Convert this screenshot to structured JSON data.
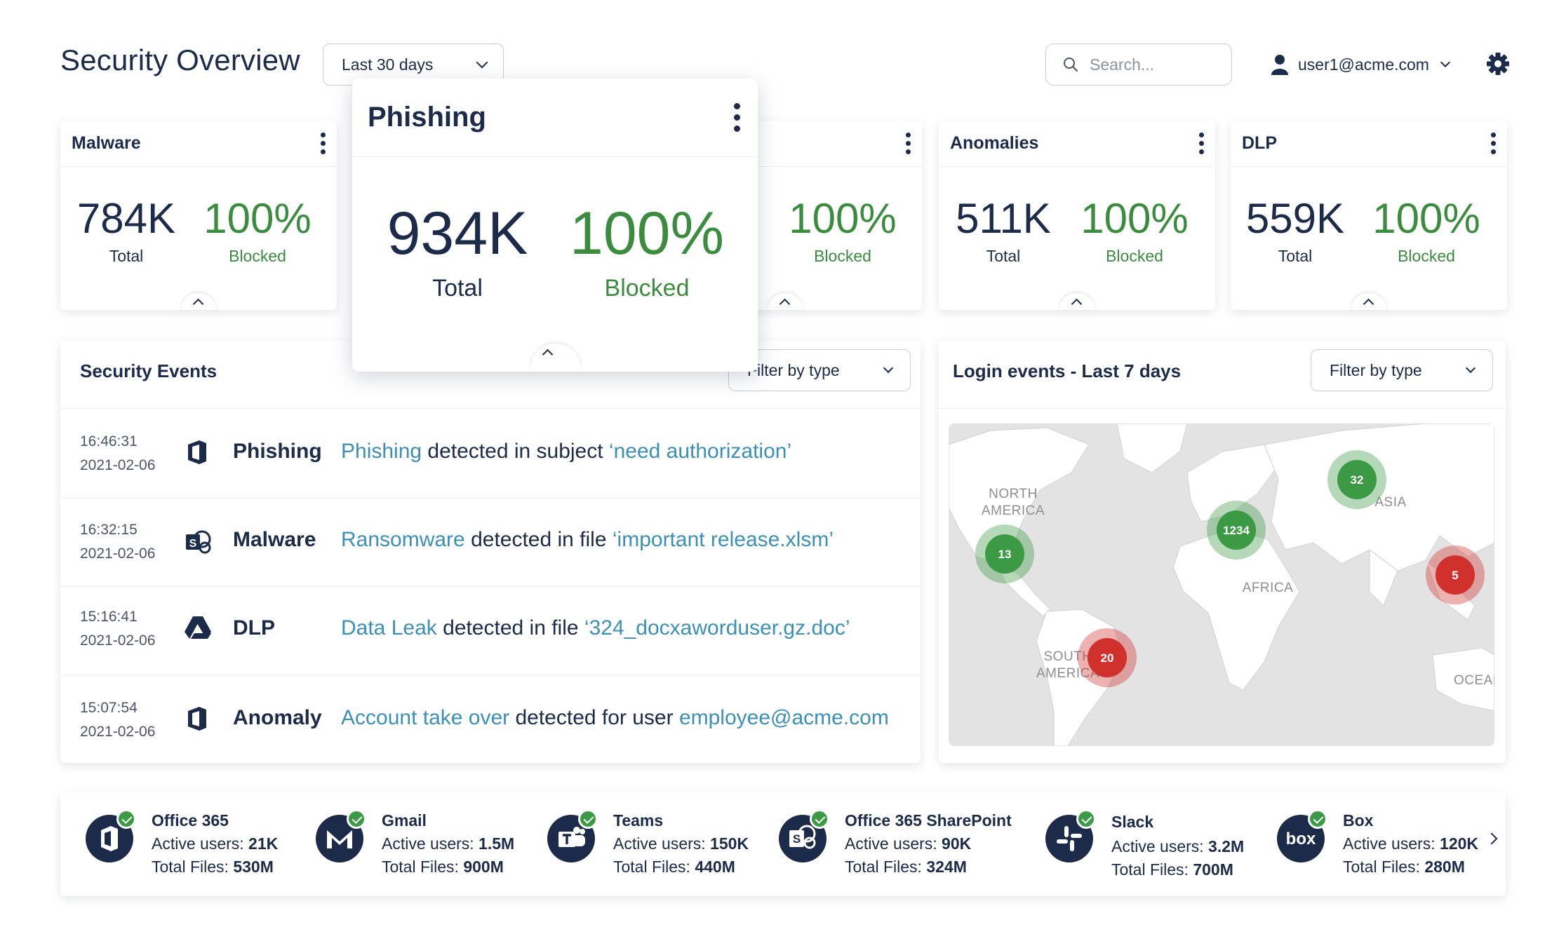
{
  "header": {
    "title": "Security Overview",
    "range": "Last 30 days",
    "search_placeholder": "Search...",
    "user": "user1@acme.com"
  },
  "cards": [
    {
      "title": "Malware",
      "total": "784K",
      "total_label": "Total",
      "blocked": "100%",
      "blocked_label": "Blocked"
    },
    {
      "title": "Phishing",
      "total": "934K",
      "total_label": "Total",
      "blocked": "100%",
      "blocked_label": "Blocked"
    },
    {
      "title": "",
      "total": "",
      "total_label": "",
      "blocked": "100%",
      "blocked_label": "Blocked"
    },
    {
      "title": "Anomalies",
      "total": "511K",
      "total_label": "Total",
      "blocked": "100%",
      "blocked_label": "Blocked"
    },
    {
      "title": "DLP",
      "total": "559K",
      "total_label": "Total",
      "blocked": "100%",
      "blocked_label": "Blocked"
    }
  ],
  "events": {
    "title": "Security Events",
    "filter": "Filter by type",
    "rows": [
      {
        "time": "16:46:31",
        "date": "2021-02-06",
        "icon": "office-icon",
        "type": "Phishing",
        "link1": "Phishing",
        "text1": " detected in subject ",
        "link2": "‘need authorization’"
      },
      {
        "time": "16:32:15",
        "date": "2021-02-06",
        "icon": "sharepoint-icon",
        "type": "Malware",
        "link1": "Ransomware",
        "text1": " detected in file ",
        "link2": "‘important release.xlsm’"
      },
      {
        "time": "15:16:41",
        "date": "2021-02-06",
        "icon": "drive-icon",
        "type": "DLP",
        "link1": "Data Leak",
        "text1": " detected in file ",
        "link2": "‘324_docxaworduser.gz.doc’"
      },
      {
        "time": "15:07:54",
        "date": "2021-02-06",
        "icon": "office-icon",
        "type": "Anomaly",
        "link1": "Account take over",
        "text1": " detected for user ",
        "link2": "employee@acme.com"
      }
    ]
  },
  "login": {
    "title": "Login events - Last 7 days",
    "filter": "Filter by type",
    "labels": {
      "na1": "NORTH",
      "na2": "AMERICA",
      "sa1": "SOUTH",
      "sa2": "AMERICA",
      "africa": "AFRICA",
      "asia": "ASIA",
      "oceania": "OCEANIA"
    },
    "clusters": [
      {
        "value": "13",
        "status": "green"
      },
      {
        "value": "1234",
        "status": "green"
      },
      {
        "value": "32",
        "status": "green"
      },
      {
        "value": "5",
        "status": "red"
      },
      {
        "value": "20",
        "status": "red"
      }
    ]
  },
  "integrations": [
    {
      "name": "Office 365",
      "users_label": "Active users:",
      "users": "21K",
      "files_label": "Total Files:",
      "files": "530M",
      "icon": "office365-icon"
    },
    {
      "name": "Gmail",
      "users_label": "Active users:",
      "users": "1.5M",
      "files_label": "Total Files:",
      "files": "900M",
      "icon": "gmail-icon"
    },
    {
      "name": "Teams",
      "users_label": "Active users:",
      "users": "150K",
      "files_label": "Total Files:",
      "files": "440M",
      "icon": "teams-icon"
    },
    {
      "name": "Office 365 SharePoint",
      "users_label": "Active users:",
      "users": "90K",
      "files_label": "Total Files:",
      "files": "324M",
      "icon": "sharepoint-icon"
    },
    {
      "name": "Slack",
      "users_label": "Active users:",
      "users": "3.2M",
      "files_label": "Total Files:",
      "files": "700M",
      "icon": "slack-icon"
    },
    {
      "name": "Box",
      "users_label": "Active users:",
      "users": "120K",
      "files_label": "Total Files:",
      "files": "280M",
      "icon": "box-icon"
    }
  ],
  "colors": {
    "navy": "#1c2b4a",
    "green": "#3b8c3e",
    "link": "#3c8fb5",
    "cluster_green": "#3c9a45",
    "cluster_red": "#d0312d"
  }
}
